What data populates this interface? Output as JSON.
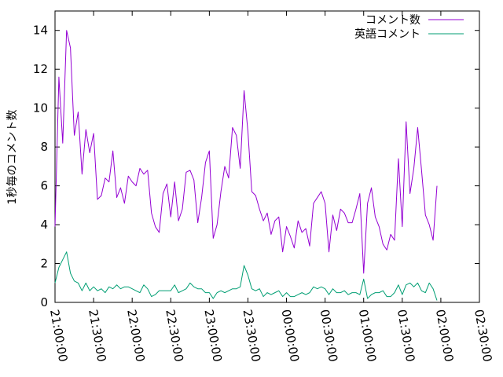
{
  "chart_data": {
    "type": "line",
    "title": "",
    "xlabel": "",
    "ylabel": "1秒毎のコメント数",
    "x_axis": {
      "type": "time",
      "min": "21:00:00",
      "max": "02:30:00",
      "tick_labels": [
        "21:00:00",
        "21:30:00",
        "22:00:00",
        "22:30:00",
        "23:00:00",
        "23:30:00",
        "00:00:00",
        "00:30:00",
        "01:00:00",
        "01:30:00",
        "02:00:00",
        "02:30:00"
      ]
    },
    "y_axis": {
      "min": 0,
      "max": 15,
      "tick_labels": [
        "0",
        "2",
        "4",
        "6",
        "8",
        "10",
        "12",
        "14"
      ]
    },
    "grid": false,
    "legend": "top-right",
    "series": [
      {
        "name": "コメント数",
        "color": "#9400d3",
        "x": [
          "21:00:00",
          "21:03:00",
          "21:06:00",
          "21:09:00",
          "21:12:00",
          "21:15:00",
          "21:18:00",
          "21:21:00",
          "21:24:00",
          "21:27:00",
          "21:30:00",
          "21:33:00",
          "21:36:00",
          "21:39:00",
          "21:42:00",
          "21:45:00",
          "21:48:00",
          "21:51:00",
          "21:54:00",
          "21:57:00",
          "22:00:00",
          "22:03:00",
          "22:06:00",
          "22:09:00",
          "22:12:00",
          "22:15:00",
          "22:18:00",
          "22:21:00",
          "22:24:00",
          "22:27:00",
          "22:30:00",
          "22:33:00",
          "22:36:00",
          "22:39:00",
          "22:42:00",
          "22:45:00",
          "22:48:00",
          "22:51:00",
          "22:54:00",
          "22:57:00",
          "23:00:00",
          "23:03:00",
          "23:06:00",
          "23:09:00",
          "23:12:00",
          "23:15:00",
          "23:18:00",
          "23:21:00",
          "23:24:00",
          "23:27:00",
          "23:30:00",
          "23:33:00",
          "23:36:00",
          "23:39:00",
          "23:42:00",
          "23:45:00",
          "23:48:00",
          "23:51:00",
          "23:54:00",
          "23:57:00",
          "00:00:00",
          "00:03:00",
          "00:06:00",
          "00:09:00",
          "00:12:00",
          "00:15:00",
          "00:18:00",
          "00:21:00",
          "00:24:00",
          "00:27:00",
          "00:30:00",
          "00:33:00",
          "00:36:00",
          "00:39:00",
          "00:42:00",
          "00:45:00",
          "00:48:00",
          "00:51:00",
          "00:54:00",
          "00:57:00",
          "01:00:00",
          "01:03:00",
          "01:06:00",
          "01:09:00",
          "01:12:00",
          "01:15:00",
          "01:18:00",
          "01:21:00",
          "01:24:00",
          "01:27:00",
          "01:30:00",
          "01:33:00",
          "01:36:00",
          "01:39:00",
          "01:42:00",
          "01:45:00",
          "01:48:00",
          "01:51:00",
          "01:54:00",
          "01:57:00",
          "02:00:00"
        ],
        "values": [
          3.9,
          11.6,
          8.2,
          14.0,
          13.1,
          8.6,
          9.8,
          6.6,
          8.9,
          7.7,
          8.7,
          5.3,
          5.5,
          6.4,
          6.2,
          7.8,
          5.4,
          5.9,
          5.1,
          6.5,
          6.2,
          6.0,
          6.9,
          6.6,
          6.8,
          4.6,
          3.9,
          3.6,
          5.6,
          6.1,
          4.4,
          6.2,
          4.2,
          4.8,
          6.7,
          6.8,
          6.3,
          4.1,
          5.4,
          7.2,
          7.8,
          3.3,
          4.0,
          5.7,
          7.0,
          6.4,
          9.0,
          8.6,
          6.9,
          10.9,
          8.8,
          5.7,
          5.5,
          4.8,
          4.2,
          4.6,
          3.5,
          4.2,
          4.4,
          2.6,
          3.9,
          3.4,
          2.8,
          4.2,
          3.6,
          3.8,
          2.9,
          5.1,
          5.4,
          5.7,
          5.1,
          2.6,
          4.5,
          3.7,
          4.8,
          4.6,
          4.1,
          4.1,
          4.8,
          5.6,
          1.5,
          5.1,
          5.9,
          4.4,
          3.9,
          3.0,
          2.7,
          3.5,
          3.2,
          7.4,
          3.9,
          9.3,
          5.6,
          6.9,
          9.0,
          6.8,
          4.5,
          4.0,
          3.2,
          6.0,
          null
        ]
      },
      {
        "name": "英語コメント",
        "color": "#009e73",
        "x": [
          "21:00:00",
          "21:03:00",
          "21:06:00",
          "21:09:00",
          "21:12:00",
          "21:15:00",
          "21:18:00",
          "21:21:00",
          "21:24:00",
          "21:27:00",
          "21:30:00",
          "21:33:00",
          "21:36:00",
          "21:39:00",
          "21:42:00",
          "21:45:00",
          "21:48:00",
          "21:51:00",
          "21:54:00",
          "21:57:00",
          "22:00:00",
          "22:03:00",
          "22:06:00",
          "22:09:00",
          "22:12:00",
          "22:15:00",
          "22:18:00",
          "22:21:00",
          "22:24:00",
          "22:27:00",
          "22:30:00",
          "22:33:00",
          "22:36:00",
          "22:39:00",
          "22:42:00",
          "22:45:00",
          "22:48:00",
          "22:51:00",
          "22:54:00",
          "22:57:00",
          "23:00:00",
          "23:03:00",
          "23:06:00",
          "23:09:00",
          "23:12:00",
          "23:15:00",
          "23:18:00",
          "23:21:00",
          "23:24:00",
          "23:27:00",
          "23:30:00",
          "23:33:00",
          "23:36:00",
          "23:39:00",
          "23:42:00",
          "23:45:00",
          "23:48:00",
          "23:51:00",
          "23:54:00",
          "23:57:00",
          "00:00:00",
          "00:03:00",
          "00:06:00",
          "00:09:00",
          "00:12:00",
          "00:15:00",
          "00:18:00",
          "00:21:00",
          "00:24:00",
          "00:27:00",
          "00:30:00",
          "00:33:00",
          "00:36:00",
          "00:39:00",
          "00:42:00",
          "00:45:00",
          "00:48:00",
          "00:51:00",
          "00:54:00",
          "00:57:00",
          "01:00:00",
          "01:03:00",
          "01:06:00",
          "01:09:00",
          "01:12:00",
          "01:15:00",
          "01:18:00",
          "01:21:00",
          "01:24:00",
          "01:27:00",
          "01:30:00",
          "01:33:00",
          "01:36:00",
          "01:39:00",
          "01:42:00",
          "01:45:00",
          "01:48:00",
          "01:51:00",
          "01:54:00",
          "01:57:00",
          "02:00:00"
        ],
        "values": [
          1.0,
          1.8,
          2.2,
          2.6,
          1.5,
          1.1,
          1.0,
          0.6,
          1.0,
          0.6,
          0.8,
          0.6,
          0.7,
          0.5,
          0.8,
          0.7,
          0.9,
          0.7,
          0.8,
          0.8,
          0.7,
          0.6,
          0.5,
          0.9,
          0.7,
          0.3,
          0.4,
          0.6,
          0.6,
          0.6,
          0.6,
          0.9,
          0.5,
          0.6,
          0.7,
          1.0,
          0.8,
          0.7,
          0.7,
          0.5,
          0.5,
          0.2,
          0.5,
          0.6,
          0.5,
          0.6,
          0.7,
          0.7,
          0.8,
          1.9,
          1.4,
          0.7,
          0.6,
          0.7,
          0.3,
          0.5,
          0.4,
          0.5,
          0.6,
          0.3,
          0.5,
          0.3,
          0.3,
          0.4,
          0.5,
          0.4,
          0.5,
          0.8,
          0.7,
          0.8,
          0.7,
          0.4,
          0.7,
          0.5,
          0.5,
          0.6,
          0.4,
          0.5,
          0.5,
          0.4,
          1.2,
          0.2,
          0.4,
          0.5,
          0.5,
          0.6,
          0.3,
          0.3,
          0.5,
          0.9,
          0.4,
          0.9,
          1.0,
          0.8,
          1.0,
          0.6,
          0.5,
          1.0,
          0.7,
          0.1,
          null
        ]
      }
    ]
  }
}
